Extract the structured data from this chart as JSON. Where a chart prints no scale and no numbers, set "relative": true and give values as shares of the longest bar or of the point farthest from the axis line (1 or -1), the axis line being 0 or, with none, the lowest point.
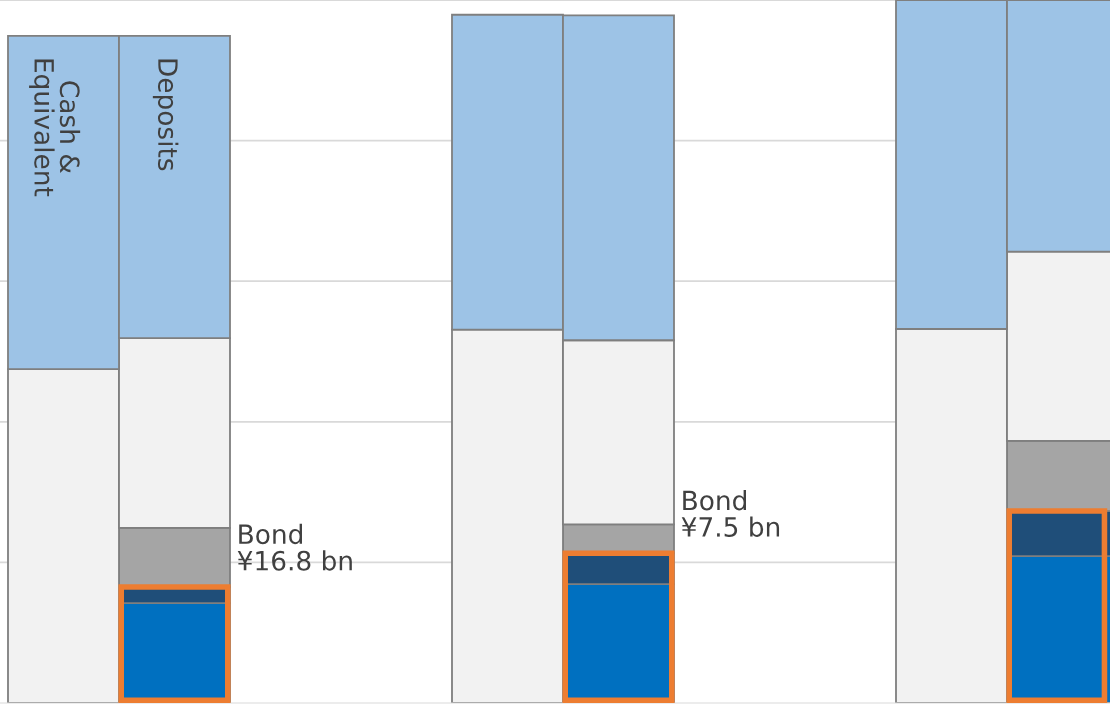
{
  "chart_data": {
    "type": "bar",
    "stacked": true,
    "relative": true,
    "grid": "y",
    "categories": [
      "Cash &\nEquivalent",
      "Deposits",
      null,
      null,
      null,
      null,
      null,
      null,
      null,
      null
    ],
    "series": [
      {
        "color": "#0070c0",
        "values": [
          null,
          0.142,
          null,
          null,
          null,
          0.169,
          null,
          null,
          null,
          0.209
        ]
      },
      {
        "color": "#1f4e79",
        "values": [
          null,
          0.023,
          null,
          null,
          null,
          0.044,
          null,
          null,
          null,
          0.064
        ]
      },
      {
        "color": "#a5a5a5",
        "values": [
          null,
          0.084,
          null,
          null,
          null,
          0.041,
          null,
          null,
          null,
          0.1
        ]
      },
      {
        "color": "#f2f2f2",
        "values": [
          0.475,
          0.27,
          null,
          null,
          0.531,
          0.262,
          null,
          null,
          0.532,
          0.269
        ]
      },
      {
        "color": "#9dc3e6",
        "values": [
          0.474,
          0.43,
          null,
          null,
          0.448,
          0.462,
          null,
          null,
          0.468,
          0.358
        ]
      }
    ],
    "annotations": [
      "Bond\n¥16.8 bn",
      "Bond\n¥7.5 bn"
    ]
  }
}
